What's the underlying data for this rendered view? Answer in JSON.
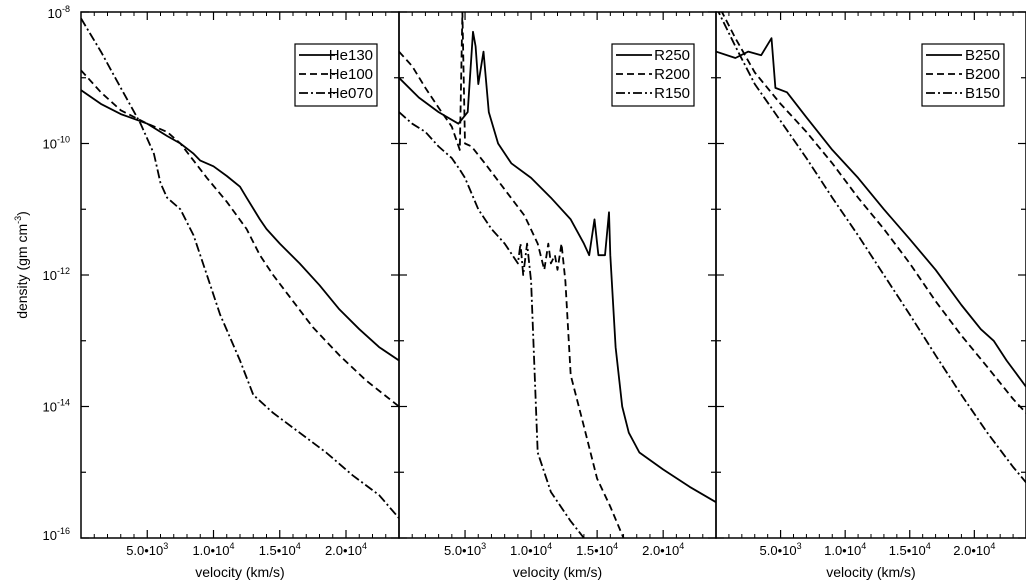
{
  "chart_data": {
    "type": "line",
    "ylabel": "density (gm cm",
    "ylabel_exponent": "-3",
    "ylabel_close": ")",
    "y_scale": "log",
    "ylim": [
      1e-16,
      1e-08
    ],
    "y_ticks": [
      {
        "value": 1e-08,
        "base": "10",
        "exp": "-8"
      },
      {
        "value": 1e-10,
        "base": "10",
        "exp": "-10"
      },
      {
        "value": 1e-12,
        "base": "10",
        "exp": "-12"
      },
      {
        "value": 1e-14,
        "base": "10",
        "exp": "-14"
      },
      {
        "value": 1e-16,
        "base": "10",
        "exp": "-16"
      }
    ],
    "x_ticks": [
      {
        "value": 5000,
        "mant": "5.0•10",
        "exp": "3"
      },
      {
        "value": 10000,
        "mant": "1.0•10",
        "exp": "4"
      },
      {
        "value": 15000,
        "mant": "1.5•10",
        "exp": "4"
      },
      {
        "value": 20000,
        "mant": "2.0•10",
        "exp": "4"
      }
    ],
    "panels": [
      {
        "xlabel": "velocity (km/s)",
        "xlim": [
          0,
          24000
        ],
        "legend_placement": "top-right",
        "series": [
          {
            "name": "He130",
            "style": "solid",
            "points": [
              [
                0,
                6.5e-10
              ],
              [
                1500,
                4e-10
              ],
              [
                3000,
                2.8e-10
              ],
              [
                5000,
                2e-10
              ],
              [
                6500,
                1.3e-10
              ],
              [
                7500,
                1e-10
              ],
              [
                8500,
                7e-11
              ],
              [
                9000,
                5.5e-11
              ],
              [
                10000,
                4.5e-11
              ],
              [
                11000,
                3.2e-11
              ],
              [
                12000,
                2.2e-11
              ],
              [
                12500,
                1.5e-11
              ],
              [
                13500,
                7e-12
              ],
              [
                14000,
                5e-12
              ],
              [
                15000,
                3e-12
              ],
              [
                16500,
                1.5e-12
              ],
              [
                18000,
                7e-13
              ],
              [
                19500,
                3e-13
              ],
              [
                21000,
                1.5e-13
              ],
              [
                22500,
                8e-14
              ],
              [
                24000,
                5e-14
              ]
            ]
          },
          {
            "name": "He100",
            "style": "dashed",
            "points": [
              [
                0,
                1.3e-09
              ],
              [
                1500,
                6e-10
              ],
              [
                3000,
                3.2e-10
              ],
              [
                5000,
                2e-10
              ],
              [
                6500,
                1.5e-10
              ],
              [
                7500,
                1e-10
              ],
              [
                8500,
                5.5e-11
              ],
              [
                9500,
                3e-11
              ],
              [
                11000,
                1.3e-11
              ],
              [
                12500,
                5e-12
              ],
              [
                13500,
                2e-12
              ],
              [
                14500,
                1e-12
              ],
              [
                16000,
                4e-13
              ],
              [
                17500,
                1.6e-13
              ],
              [
                19500,
                6e-14
              ],
              [
                21500,
                2.5e-14
              ],
              [
                24000,
                1e-14
              ]
            ]
          },
          {
            "name": "He070",
            "style": "dashdot",
            "points": [
              [
                0,
                8e-09
              ],
              [
                1500,
                2.5e-09
              ],
              [
                3000,
                7e-10
              ],
              [
                4500,
                2e-10
              ],
              [
                5500,
                7e-11
              ],
              [
                6000,
                2.5e-11
              ],
              [
                6500,
                1.5e-11
              ],
              [
                7500,
                1e-11
              ],
              [
                8500,
                4e-12
              ],
              [
                9500,
                1e-12
              ],
              [
                10500,
                2.5e-13
              ],
              [
                12000,
                5e-14
              ],
              [
                13000,
                1.5e-14
              ],
              [
                14500,
                8e-15
              ],
              [
                16500,
                4e-15
              ],
              [
                18500,
                2e-15
              ],
              [
                20500,
                9e-16
              ],
              [
                22500,
                4.5e-16
              ],
              [
                24000,
                2e-16
              ]
            ]
          }
        ]
      },
      {
        "xlabel": "velocity (km/s)",
        "xlim": [
          0,
          24000
        ],
        "legend_placement": "top-right",
        "series": [
          {
            "name": "R250",
            "style": "solid",
            "points": [
              [
                0,
                1e-09
              ],
              [
                1500,
                5e-10
              ],
              [
                3000,
                3e-10
              ],
              [
                4500,
                2e-10
              ],
              [
                5200,
                3e-10
              ],
              [
                5600,
                5e-09
              ],
              [
                5800,
                3e-09
              ],
              [
                6000,
                8e-10
              ],
              [
                6400,
                2.5e-09
              ],
              [
                6800,
                3e-10
              ],
              [
                7500,
                1e-10
              ],
              [
                8500,
                5e-11
              ],
              [
                10000,
                3e-11
              ],
              [
                11500,
                1.5e-11
              ],
              [
                13000,
                7e-12
              ],
              [
                14000,
                3e-12
              ],
              [
                14400,
                2e-12
              ],
              [
                14800,
                7e-12
              ],
              [
                15100,
                2e-12
              ],
              [
                15600,
                2e-12
              ],
              [
                15900,
                9e-12
              ],
              [
                16000,
                2e-12
              ],
              [
                16400,
                8e-14
              ],
              [
                16900,
                1e-14
              ],
              [
                17400,
                4e-15
              ],
              [
                18200,
                2e-15
              ],
              [
                20000,
                1.1e-15
              ],
              [
                22000,
                6e-16
              ],
              [
                24000,
                3.5e-16
              ]
            ]
          },
          {
            "name": "R200",
            "style": "dashed",
            "points": [
              [
                0,
                2.5e-09
              ],
              [
                1000,
                1.5e-09
              ],
              [
                2000,
                7e-10
              ],
              [
                3000,
                3.5e-10
              ],
              [
                4000,
                1.8e-10
              ],
              [
                4600,
                8e-11
              ],
              [
                4800,
                1e-08
              ],
              [
                5000,
                1e-10
              ],
              [
                5500,
                9e-11
              ],
              [
                6500,
                5e-11
              ],
              [
                8000,
                2e-11
              ],
              [
                9500,
                8e-12
              ],
              [
                10500,
                3e-12
              ],
              [
                11000,
                1.2e-12
              ],
              [
                11300,
                3e-12
              ],
              [
                11500,
                1.5e-12
              ],
              [
                11800,
                2e-12
              ],
              [
                12000,
                1.2e-12
              ],
              [
                12300,
                3e-12
              ],
              [
                12600,
                8e-13
              ],
              [
                13000,
                3e-14
              ],
              [
                14000,
                5e-15
              ],
              [
                15000,
                8e-16
              ],
              [
                16000,
                3e-16
              ],
              [
                17000,
                1e-16
              ]
            ]
          },
          {
            "name": "R150",
            "style": "dashdot",
            "points": [
              [
                0,
                3e-10
              ],
              [
                1000,
                2e-10
              ],
              [
                2000,
                1.5e-10
              ],
              [
                3000,
                9e-11
              ],
              [
                4000,
                6e-11
              ],
              [
                4600,
                4e-11
              ],
              [
                5000,
                3e-11
              ],
              [
                6000,
                1e-11
              ],
              [
                7000,
                5e-12
              ],
              [
                8000,
                3e-12
              ],
              [
                9000,
                1.5e-12
              ],
              [
                9200,
                3e-12
              ],
              [
                9400,
                1e-12
              ],
              [
                9700,
                3e-12
              ],
              [
                10000,
                8e-13
              ],
              [
                10500,
                2e-15
              ],
              [
                11500,
                5e-16
              ],
              [
                13000,
                1.8e-16
              ],
              [
                14000,
                1e-16
              ]
            ]
          }
        ]
      },
      {
        "xlabel": "velocity (km/s)",
        "xlim": [
          0,
          24000
        ],
        "legend_placement": "top-right",
        "series": [
          {
            "name": "B250",
            "style": "solid",
            "points": [
              [
                0,
                2.5e-09
              ],
              [
                1500,
                2e-09
              ],
              [
                2500,
                2.5e-09
              ],
              [
                3500,
                2.2e-09
              ],
              [
                4300,
                4e-09
              ],
              [
                4600,
                7e-10
              ],
              [
                5500,
                6e-10
              ],
              [
                7000,
                2.5e-10
              ],
              [
                9000,
                8e-11
              ],
              [
                11000,
                3e-11
              ],
              [
                13000,
                1e-11
              ],
              [
                15000,
                3.5e-12
              ],
              [
                17000,
                1.2e-12
              ],
              [
                19000,
                3.5e-13
              ],
              [
                20500,
                1.5e-13
              ],
              [
                21500,
                1e-13
              ],
              [
                22500,
                5e-14
              ],
              [
                24000,
                2e-14
              ]
            ]
          },
          {
            "name": "B200",
            "style": "dashed",
            "points": [
              [
                0,
                1.5e-08
              ],
              [
                1500,
                4e-09
              ],
              [
                3000,
                1.2e-09
              ],
              [
                5000,
                4e-10
              ],
              [
                7000,
                1.5e-10
              ],
              [
                9000,
                5e-11
              ],
              [
                11000,
                1.5e-11
              ],
              [
                13000,
                5e-12
              ],
              [
                15000,
                1.5e-12
              ],
              [
                17000,
                4e-13
              ],
              [
                19000,
                1.2e-13
              ],
              [
                21000,
                4e-14
              ],
              [
                23000,
                1.3e-14
              ],
              [
                24000,
                8e-15
              ]
            ]
          },
          {
            "name": "B150",
            "style": "dashdot",
            "points": [
              [
                0,
                1.2e-08
              ],
              [
                1500,
                3e-09
              ],
              [
                3000,
                8e-10
              ],
              [
                5000,
                2.2e-10
              ],
              [
                7000,
                6e-11
              ],
              [
                9000,
                1.5e-11
              ],
              [
                11000,
                4e-12
              ],
              [
                13000,
                1e-12
              ],
              [
                15000,
                2.5e-13
              ],
              [
                17000,
                6e-14
              ],
              [
                19000,
                1.5e-14
              ],
              [
                21000,
                4e-15
              ],
              [
                23000,
                1.2e-15
              ],
              [
                24000,
                7e-16
              ]
            ]
          }
        ]
      }
    ]
  }
}
